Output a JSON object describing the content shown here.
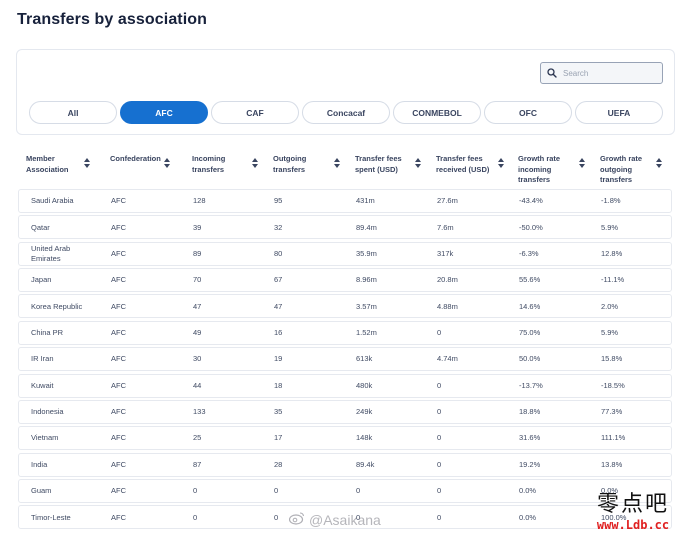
{
  "page": {
    "title": "Transfers by association"
  },
  "search": {
    "placeholder": "Search",
    "icon": "search-icon"
  },
  "tabs": [
    {
      "label": "All",
      "active": false
    },
    {
      "label": "AFC",
      "active": true
    },
    {
      "label": "CAF",
      "active": false
    },
    {
      "label": "Concacaf",
      "active": false
    },
    {
      "label": "CONMEBOL",
      "active": false
    },
    {
      "label": "OFC",
      "active": false
    },
    {
      "label": "UEFA",
      "active": false
    }
  ],
  "table": {
    "columns": [
      "Member Association",
      "Confederation",
      "Incoming transfers",
      "Outgoing transfers",
      "Transfer fees spent (USD)",
      "Transfer fees received (USD)",
      "Growth rate incoming transfers",
      "Growth rate outgoing transfers"
    ],
    "rows": [
      [
        "Saudi Arabia",
        "AFC",
        "128",
        "95",
        "431m",
        "27.6m",
        "-43.4%",
        "-1.8%"
      ],
      [
        "Qatar",
        "AFC",
        "39",
        "32",
        "89.4m",
        "7.6m",
        "-50.0%",
        "5.9%"
      ],
      [
        "United Arab Emirates",
        "AFC",
        "89",
        "80",
        "35.9m",
        "317k",
        "-6.3%",
        "12.8%"
      ],
      [
        "Japan",
        "AFC",
        "70",
        "67",
        "8.96m",
        "20.8m",
        "55.6%",
        "-11.1%"
      ],
      [
        "Korea Republic",
        "AFC",
        "47",
        "47",
        "3.57m",
        "4.88m",
        "14.6%",
        "2.0%"
      ],
      [
        "China PR",
        "AFC",
        "49",
        "16",
        "1.52m",
        "0",
        "75.0%",
        "5.9%"
      ],
      [
        "IR Iran",
        "AFC",
        "30",
        "19",
        "613k",
        "4.74m",
        "50.0%",
        "15.8%"
      ],
      [
        "Kuwait",
        "AFC",
        "44",
        "18",
        "480k",
        "0",
        "-13.7%",
        "-18.5%"
      ],
      [
        "Indonesia",
        "AFC",
        "133",
        "35",
        "249k",
        "0",
        "18.8%",
        "77.3%"
      ],
      [
        "Vietnam",
        "AFC",
        "25",
        "17",
        "148k",
        "0",
        "31.6%",
        "111.1%"
      ],
      [
        "India",
        "AFC",
        "87",
        "28",
        "89.4k",
        "0",
        "19.2%",
        "13.8%"
      ],
      [
        "Guam",
        "AFC",
        "0",
        "0",
        "0",
        "0",
        "0.0%",
        "0.0%"
      ],
      [
        "Timor-Leste",
        "AFC",
        "0",
        "0",
        "0",
        "0",
        "0.0%",
        "100.0%"
      ]
    ]
  },
  "overlays": {
    "watermark": "@Asaikana",
    "corner_logo_text": "零点吧",
    "corner_logo_url": "www.Ldb.cc"
  },
  "colors": {
    "accent": "#1670d0",
    "title": "#17213b",
    "text": "#3f4a63",
    "border": "#e6e9ef"
  }
}
